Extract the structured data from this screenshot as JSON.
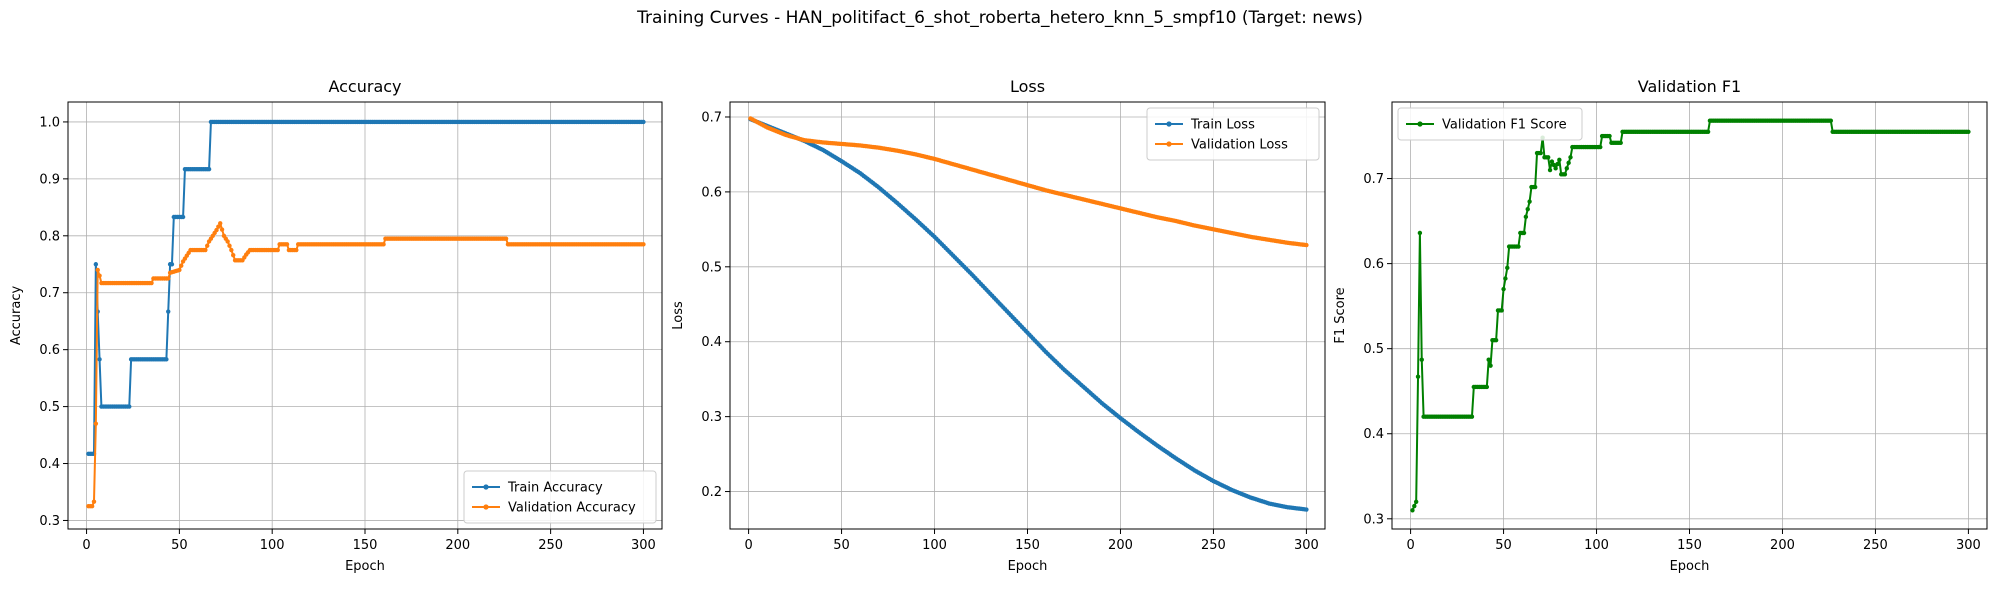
{
  "figure": {
    "suptitle": "Training Curves - HAN_politifact_6_shot_roberta_hetero_knn_5_smpf10 (Target: news)"
  },
  "colors": {
    "blue": "#1f77b4",
    "orange": "#ff7f0e",
    "green": "#008000",
    "grid": "#b0b0b0"
  },
  "chart_data": [
    {
      "type": "line",
      "title": "Accuracy",
      "xlabel": "Epoch",
      "ylabel": "Accuracy",
      "xlim": [
        -10,
        310
      ],
      "ylim": [
        0.285,
        1.035
      ],
      "xticks": [
        0,
        50,
        100,
        150,
        200,
        250,
        300
      ],
      "yticks": [
        0.3,
        0.4,
        0.5,
        0.6,
        0.7,
        0.8,
        0.9,
        1.0
      ],
      "ytick_labels": [
        "0.3",
        "0.4",
        "0.5",
        "0.6",
        "0.7",
        "0.8",
        "0.9",
        "1.0"
      ],
      "grid": true,
      "legend_position": "lower-right",
      "series": [
        {
          "name": "Train Accuracy",
          "color": "blue",
          "points": [
            [
              1,
              0.417
            ],
            [
              4,
              0.417
            ],
            [
              5,
              0.75
            ],
            [
              6,
              0.667
            ],
            [
              7,
              0.583
            ],
            [
              8,
              0.5
            ],
            [
              23,
              0.5
            ],
            [
              24,
              0.583
            ],
            [
              43,
              0.583
            ],
            [
              44,
              0.667
            ],
            [
              45,
              0.75
            ],
            [
              46,
              0.75
            ],
            [
              47,
              0.833
            ],
            [
              52,
              0.833
            ],
            [
              53,
              0.917
            ],
            [
              66,
              0.917
            ],
            [
              67,
              1.0
            ],
            [
              300,
              1.0
            ]
          ]
        },
        {
          "name": "Validation Accuracy",
          "color": "orange",
          "points": [
            [
              1,
              0.325
            ],
            [
              3,
              0.325
            ],
            [
              4,
              0.333
            ],
            [
              5,
              0.47
            ],
            [
              6,
              0.74
            ],
            [
              7,
              0.73
            ],
            [
              8,
              0.717
            ],
            [
              35,
              0.717
            ],
            [
              36,
              0.725
            ],
            [
              44,
              0.725
            ],
            [
              45,
              0.735
            ],
            [
              50,
              0.74
            ],
            [
              52,
              0.755
            ],
            [
              54,
              0.765
            ],
            [
              56,
              0.775
            ],
            [
              64,
              0.775
            ],
            [
              66,
              0.79
            ],
            [
              68,
              0.8
            ],
            [
              70,
              0.81
            ],
            [
              72,
              0.822
            ],
            [
              74,
              0.8
            ],
            [
              76,
              0.79
            ],
            [
              78,
              0.775
            ],
            [
              80,
              0.757
            ],
            [
              84,
              0.757
            ],
            [
              86,
              0.767
            ],
            [
              88,
              0.775
            ],
            [
              103,
              0.775
            ],
            [
              104,
              0.785
            ],
            [
              108,
              0.785
            ],
            [
              109,
              0.775
            ],
            [
              113,
              0.775
            ],
            [
              114,
              0.785
            ],
            [
              160,
              0.785
            ],
            [
              161,
              0.795
            ],
            [
              226,
              0.795
            ],
            [
              227,
              0.785
            ],
            [
              300,
              0.785
            ]
          ]
        }
      ]
    },
    {
      "type": "line",
      "title": "Loss",
      "xlabel": "Epoch",
      "ylabel": "Loss",
      "xlim": [
        -10,
        310
      ],
      "ylim": [
        0.15,
        0.72
      ],
      "xticks": [
        0,
        50,
        100,
        150,
        200,
        250,
        300
      ],
      "yticks": [
        0.2,
        0.3,
        0.4,
        0.5,
        0.6,
        0.7
      ],
      "ytick_labels": [
        "0.2",
        "0.3",
        "0.4",
        "0.5",
        "0.6",
        "0.7"
      ],
      "grid": true,
      "legend_position": "upper-right",
      "series": [
        {
          "name": "Train Loss",
          "color": "blue",
          "points": [
            [
              1,
              0.697
            ],
            [
              10,
              0.688
            ],
            [
              20,
              0.678
            ],
            [
              30,
              0.668
            ],
            [
              40,
              0.656
            ],
            [
              50,
              0.641
            ],
            [
              60,
              0.625
            ],
            [
              70,
              0.606
            ],
            [
              80,
              0.585
            ],
            [
              90,
              0.563
            ],
            [
              100,
              0.54
            ],
            [
              110,
              0.515
            ],
            [
              120,
              0.49
            ],
            [
              130,
              0.464
            ],
            [
              140,
              0.438
            ],
            [
              150,
              0.412
            ],
            [
              160,
              0.386
            ],
            [
              170,
              0.362
            ],
            [
              180,
              0.34
            ],
            [
              190,
              0.318
            ],
            [
              200,
              0.298
            ],
            [
              210,
              0.279
            ],
            [
              220,
              0.261
            ],
            [
              230,
              0.244
            ],
            [
              240,
              0.228
            ],
            [
              250,
              0.214
            ],
            [
              260,
              0.202
            ],
            [
              270,
              0.192
            ],
            [
              280,
              0.184
            ],
            [
              290,
              0.179
            ],
            [
              300,
              0.176
            ]
          ]
        },
        {
          "name": "Validation Loss",
          "color": "orange",
          "points": [
            [
              1,
              0.698
            ],
            [
              10,
              0.686
            ],
            [
              20,
              0.676
            ],
            [
              30,
              0.669
            ],
            [
              40,
              0.666
            ],
            [
              50,
              0.664
            ],
            [
              60,
              0.662
            ],
            [
              70,
              0.659
            ],
            [
              80,
              0.655
            ],
            [
              90,
              0.65
            ],
            [
              100,
              0.644
            ],
            [
              110,
              0.637
            ],
            [
              120,
              0.63
            ],
            [
              130,
              0.623
            ],
            [
              140,
              0.616
            ],
            [
              150,
              0.609
            ],
            [
              160,
              0.602
            ],
            [
              170,
              0.596
            ],
            [
              180,
              0.59
            ],
            [
              190,
              0.584
            ],
            [
              200,
              0.578
            ],
            [
              210,
              0.572
            ],
            [
              220,
              0.566
            ],
            [
              230,
              0.561
            ],
            [
              240,
              0.555
            ],
            [
              250,
              0.55
            ],
            [
              260,
              0.545
            ],
            [
              270,
              0.54
            ],
            [
              280,
              0.536
            ],
            [
              290,
              0.532
            ],
            [
              300,
              0.529
            ]
          ]
        }
      ]
    },
    {
      "type": "line",
      "title": "Validation F1",
      "xlabel": "Epoch",
      "ylabel": "F1 Score",
      "xlim": [
        -10,
        310
      ],
      "ylim": [
        0.288,
        0.79
      ],
      "xticks": [
        0,
        50,
        100,
        150,
        200,
        250,
        300
      ],
      "yticks": [
        0.3,
        0.4,
        0.5,
        0.6,
        0.7
      ],
      "ytick_labels": [
        "0.3",
        "0.4",
        "0.5",
        "0.6",
        "0.7"
      ],
      "grid": true,
      "legend_position": "upper-left",
      "series": [
        {
          "name": "Validation F1 Score",
          "color": "green",
          "points": [
            [
              1,
              0.31
            ],
            [
              3,
              0.32
            ],
            [
              4,
              0.467
            ],
            [
              5,
              0.636
            ],
            [
              6,
              0.487
            ],
            [
              7,
              0.42
            ],
            [
              33,
              0.42
            ],
            [
              34,
              0.455
            ],
            [
              41,
              0.455
            ],
            [
              42,
              0.487
            ],
            [
              43,
              0.48
            ],
            [
              44,
              0.51
            ],
            [
              46,
              0.51
            ],
            [
              47,
              0.545
            ],
            [
              49,
              0.545
            ],
            [
              50,
              0.57
            ],
            [
              52,
              0.595
            ],
            [
              53,
              0.62
            ],
            [
              58,
              0.62
            ],
            [
              59,
              0.636
            ],
            [
              61,
              0.636
            ],
            [
              62,
              0.655
            ],
            [
              64,
              0.673
            ],
            [
              65,
              0.69
            ],
            [
              67,
              0.69
            ],
            [
              68,
              0.73
            ],
            [
              70,
              0.73
            ],
            [
              71,
              0.748
            ],
            [
              72,
              0.725
            ],
            [
              74,
              0.725
            ],
            [
              75,
              0.71
            ],
            [
              76,
              0.72
            ],
            [
              78,
              0.712
            ],
            [
              80,
              0.722
            ],
            [
              81,
              0.705
            ],
            [
              83,
              0.705
            ],
            [
              84,
              0.712
            ],
            [
              86,
              0.725
            ],
            [
              87,
              0.737
            ],
            [
              102,
              0.737
            ],
            [
              103,
              0.75
            ],
            [
              107,
              0.75
            ],
            [
              108,
              0.742
            ],
            [
              113,
              0.742
            ],
            [
              114,
              0.755
            ],
            [
              160,
              0.755
            ],
            [
              161,
              0.768
            ],
            [
              226,
              0.768
            ],
            [
              227,
              0.755
            ],
            [
              300,
              0.755
            ]
          ]
        }
      ]
    }
  ]
}
